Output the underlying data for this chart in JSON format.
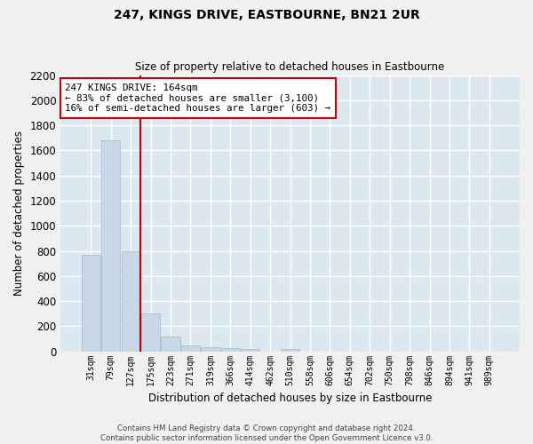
{
  "title": "247, KINGS DRIVE, EASTBOURNE, BN21 2UR",
  "subtitle": "Size of property relative to detached houses in Eastbourne",
  "xlabel": "Distribution of detached houses by size in Eastbourne",
  "ylabel": "Number of detached properties",
  "bar_color": "#c8d8e8",
  "bar_edgecolor": "#a0b8cc",
  "background_color": "#dce8f0",
  "grid_color": "#ffffff",
  "categories": [
    "31sqm",
    "79sqm",
    "127sqm",
    "175sqm",
    "223sqm",
    "271sqm",
    "319sqm",
    "366sqm",
    "414sqm",
    "462sqm",
    "510sqm",
    "558sqm",
    "606sqm",
    "654sqm",
    "702sqm",
    "750sqm",
    "798sqm",
    "846sqm",
    "894sqm",
    "941sqm",
    "989sqm"
  ],
  "values": [
    770,
    1680,
    795,
    300,
    115,
    45,
    32,
    25,
    22,
    0,
    22,
    0,
    0,
    0,
    0,
    0,
    0,
    0,
    0,
    0,
    0
  ],
  "ylim": [
    0,
    2200
  ],
  "yticks": [
    0,
    200,
    400,
    600,
    800,
    1000,
    1200,
    1400,
    1600,
    1800,
    2000,
    2200
  ],
  "red_line_x": 2.5,
  "annotation_text": "247 KINGS DRIVE: 164sqm\n← 83% of detached houses are smaller (3,100)\n16% of semi-detached houses are larger (603) →",
  "annotation_box_color": "#ffffff",
  "annotation_box_edgecolor": "#cc0000",
  "footer_line1": "Contains HM Land Registry data © Crown copyright and database right 2024.",
  "footer_line2": "Contains public sector information licensed under the Open Government Licence v3.0."
}
